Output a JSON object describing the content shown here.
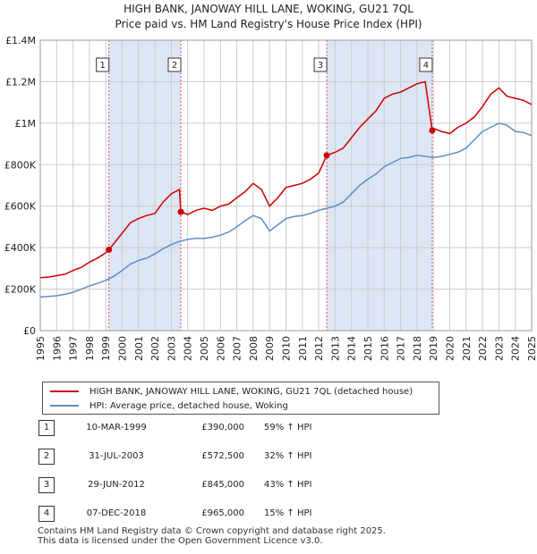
{
  "title_line1": "HIGH BANK, JANOWAY HILL LANE, WOKING, GU21 7QL",
  "title_line2": "Price paid vs. HM Land Registry's House Price Index (HPI)",
  "legend": {
    "property_label": "HIGH BANK, JANOWAY HILL LANE, WOKING, GU21 7QL (detached house)",
    "hpi_label": "HPI: Average price, detached house, Woking"
  },
  "sales": [
    {
      "num": "1",
      "date": "10-MAR-1999",
      "price": "£390,000",
      "pct": "59% ↑ HPI"
    },
    {
      "num": "2",
      "date": "31-JUL-2003",
      "price": "£572,500",
      "pct": "32% ↑ HPI"
    },
    {
      "num": "3",
      "date": "29-JUN-2012",
      "price": "£845,000",
      "pct": "43% ↑ HPI"
    },
    {
      "num": "4",
      "date": "07-DEC-2018",
      "price": "£965,000",
      "pct": "15% ↑ HPI"
    }
  ],
  "footer_line1": "Contains HM Land Registry data © Crown copyright and database right 2025.",
  "footer_line2": "This data is licensed under the Open Government Licence v3.0.",
  "colors": {
    "property": "#cc0000",
    "hpi": "#5b8ec7",
    "band": "#dce6f5",
    "grid": "#cccccc",
    "vline": "#e05050"
  },
  "chart_data": {
    "type": "line",
    "xlim": [
      1995,
      2025
    ],
    "ylim": [
      0,
      1400000
    ],
    "y_ticks": [
      {
        "v": 0,
        "label": "£0"
      },
      {
        "v": 200000,
        "label": "£200K"
      },
      {
        "v": 400000,
        "label": "£400K"
      },
      {
        "v": 600000,
        "label": "£600K"
      },
      {
        "v": 800000,
        "label": "£800K"
      },
      {
        "v": 1000000,
        "label": "£1M"
      },
      {
        "v": 1200000,
        "label": "£1.2M"
      },
      {
        "v": 1400000,
        "label": "£1.4M"
      }
    ],
    "x_ticks": [
      "1995",
      "1996",
      "1997",
      "1998",
      "1999",
      "2000",
      "2001",
      "2002",
      "2003",
      "2004",
      "2005",
      "2006",
      "2007",
      "2008",
      "2009",
      "2010",
      "2011",
      "2012",
      "2013",
      "2014",
      "2015",
      "2016",
      "2017",
      "2018",
      "2019",
      "2020",
      "2021",
      "2022",
      "2023",
      "2024",
      "2025"
    ],
    "sale_markers": [
      {
        "label": "1",
        "x": 1999.19,
        "y": 390000
      },
      {
        "label": "2",
        "x": 2003.58,
        "y": 572500
      },
      {
        "label": "3",
        "x": 2012.49,
        "y": 845000
      },
      {
        "label": "4",
        "x": 2018.93,
        "y": 965000
      }
    ],
    "shaded_bands": [
      [
        1999.19,
        2003.58
      ],
      [
        2012.49,
        2018.93
      ]
    ],
    "series": [
      {
        "name": "HIGH BANK, JANOWAY HILL LANE, WOKING, GU21 7QL (detached house)",
        "x": [
          1995.0,
          1995.5,
          1996.0,
          1996.5,
          1997.0,
          1997.5,
          1998.0,
          1998.5,
          1999.0,
          1999.19,
          1999.5,
          2000.0,
          2000.5,
          2001.0,
          2001.5,
          2002.0,
          2002.5,
          2003.0,
          2003.5,
          2003.58,
          2004.0,
          2004.5,
          2005.0,
          2005.5,
          2006.0,
          2006.5,
          2007.0,
          2007.5,
          2008.0,
          2008.5,
          2009.0,
          2009.5,
          2010.0,
          2010.5,
          2011.0,
          2011.5,
          2012.0,
          2012.49,
          2013.0,
          2013.5,
          2014.0,
          2014.5,
          2015.0,
          2015.5,
          2016.0,
          2016.5,
          2017.0,
          2017.5,
          2018.0,
          2018.5,
          2018.93,
          2019.0,
          2019.5,
          2020.0,
          2020.5,
          2021.0,
          2021.5,
          2022.0,
          2022.5,
          2023.0,
          2023.5,
          2024.0,
          2024.5,
          2025.0
        ],
        "y": [
          255000,
          258000,
          265000,
          272000,
          290000,
          305000,
          330000,
          350000,
          375000,
          390000,
          420000,
          470000,
          520000,
          540000,
          555000,
          565000,
          620000,
          660000,
          680000,
          572500,
          560000,
          580000,
          590000,
          580000,
          600000,
          610000,
          640000,
          670000,
          710000,
          680000,
          600000,
          640000,
          690000,
          700000,
          710000,
          730000,
          760000,
          845000,
          860000,
          880000,
          930000,
          980000,
          1020000,
          1060000,
          1120000,
          1140000,
          1150000,
          1170000,
          1190000,
          1200000,
          965000,
          975000,
          960000,
          950000,
          980000,
          1000000,
          1030000,
          1080000,
          1140000,
          1170000,
          1130000,
          1120000,
          1110000,
          1090000
        ]
      },
      {
        "name": "HPI: Average price, detached house, Woking",
        "x": [
          1995.0,
          1995.5,
          1996.0,
          1996.5,
          1997.0,
          1997.5,
          1998.0,
          1998.5,
          1999.0,
          1999.5,
          2000.0,
          2000.5,
          2001.0,
          2001.5,
          2002.0,
          2002.5,
          2003.0,
          2003.5,
          2004.0,
          2004.5,
          2005.0,
          2005.5,
          2006.0,
          2006.5,
          2007.0,
          2007.5,
          2008.0,
          2008.5,
          2009.0,
          2009.5,
          2010.0,
          2010.5,
          2011.0,
          2011.5,
          2012.0,
          2012.5,
          2013.0,
          2013.5,
          2014.0,
          2014.5,
          2015.0,
          2015.5,
          2016.0,
          2016.5,
          2017.0,
          2017.5,
          2018.0,
          2018.5,
          2019.0,
          2019.5,
          2020.0,
          2020.5,
          2021.0,
          2021.5,
          2022.0,
          2022.5,
          2023.0,
          2023.5,
          2024.0,
          2024.5,
          2025.0
        ],
        "y": [
          162000,
          165000,
          168000,
          175000,
          185000,
          200000,
          215000,
          228000,
          242000,
          262000,
          290000,
          320000,
          338000,
          350000,
          370000,
          395000,
          415000,
          430000,
          440000,
          445000,
          445000,
          450000,
          460000,
          475000,
          500000,
          530000,
          555000,
          540000,
          480000,
          510000,
          540000,
          550000,
          555000,
          565000,
          580000,
          590000,
          600000,
          620000,
          660000,
          700000,
          730000,
          755000,
          790000,
          810000,
          830000,
          835000,
          845000,
          840000,
          835000,
          840000,
          850000,
          860000,
          880000,
          920000,
          960000,
          980000,
          1000000,
          990000,
          960000,
          955000,
          940000
        ]
      }
    ]
  }
}
